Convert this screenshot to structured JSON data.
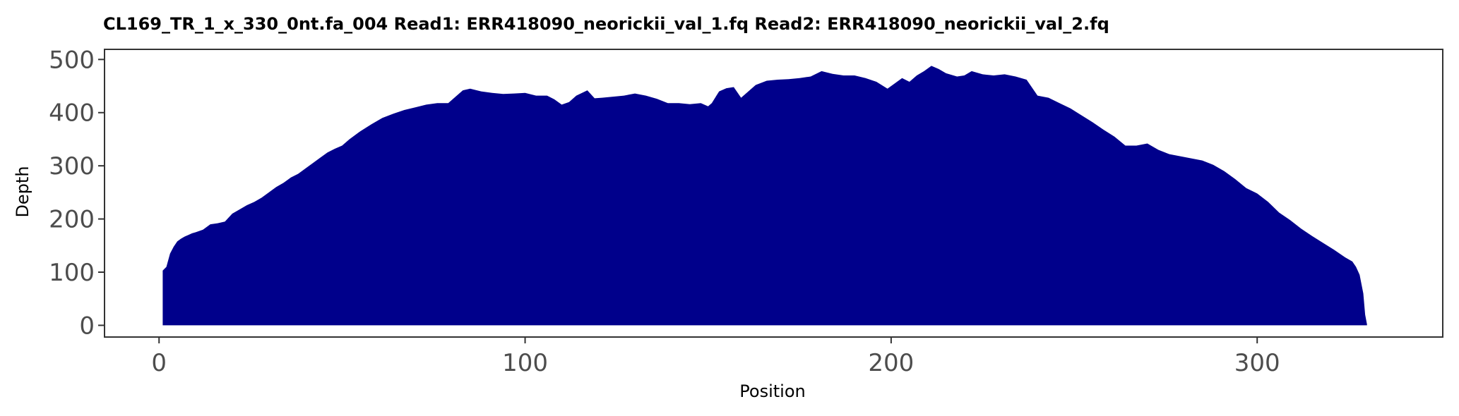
{
  "chart_data": {
    "type": "area",
    "title": "CL169_TR_1_x_330_0nt.fa_004   Read1: ERR418090_neorickii_val_1.fq   Read2: ERR418090_neorickii_val_2.fq",
    "xlabel": "Position",
    "ylabel": "Depth",
    "xlim": [
      -14.9,
      350.7
    ],
    "ylim": [
      -22,
      519
    ],
    "xticks": [
      0,
      100,
      200,
      300
    ],
    "yticks": [
      0,
      100,
      200,
      300,
      400,
      500
    ],
    "grid": false,
    "fill_color": "#00008b",
    "series": [
      {
        "x": [
          1,
          2,
          3,
          4,
          5,
          6,
          7,
          8,
          9,
          10,
          12,
          14,
          16,
          18,
          20,
          22,
          24,
          26,
          28,
          30,
          32,
          34,
          36,
          38,
          40,
          42,
          44,
          46,
          48,
          50,
          52,
          55,
          58,
          61,
          64,
          67,
          70,
          73,
          76,
          79,
          81,
          83,
          85,
          88,
          91,
          94,
          97,
          100,
          103,
          106,
          108,
          110,
          112,
          114,
          117,
          119,
          121,
          124,
          127,
          130,
          133,
          136,
          139,
          142,
          145,
          148,
          150,
          151,
          153,
          155,
          157,
          159,
          161,
          163,
          166,
          169,
          172,
          175,
          178,
          181,
          184,
          187,
          190,
          193,
          196,
          199,
          201,
          203,
          205,
          207,
          209,
          211,
          213,
          215,
          218,
          220,
          222,
          225,
          228,
          231,
          234,
          237,
          240,
          243,
          246,
          249,
          252,
          255,
          258,
          261,
          264,
          267,
          270,
          273,
          276,
          279,
          282,
          285,
          288,
          291,
          294,
          297,
          300,
          303,
          306,
          309,
          312,
          315,
          318,
          321,
          324,
          326,
          327,
          328,
          329,
          329.5,
          330
        ],
        "y": [
          103,
          110,
          135,
          148,
          158,
          163,
          167,
          170,
          173,
          175,
          180,
          190,
          192,
          195,
          210,
          218,
          226,
          232,
          240,
          250,
          260,
          268,
          278,
          285,
          295,
          305,
          315,
          325,
          332,
          338,
          350,
          365,
          378,
          390,
          398,
          405,
          410,
          415,
          418,
          418,
          430,
          442,
          445,
          440,
          437,
          435,
          436,
          437,
          432,
          432,
          425,
          415,
          420,
          432,
          442,
          427,
          428,
          430,
          432,
          436,
          432,
          426,
          418,
          418,
          416,
          418,
          412,
          418,
          440,
          446,
          448,
          428,
          440,
          452,
          460,
          462,
          463,
          465,
          468,
          478,
          473,
          470,
          470,
          465,
          458,
          445,
          455,
          465,
          458,
          470,
          478,
          488,
          482,
          474,
          468,
          470,
          478,
          472,
          470,
          472,
          468,
          462,
          432,
          428,
          418,
          408,
          395,
          382,
          368,
          355,
          338,
          338,
          342,
          330,
          322,
          318,
          314,
          310,
          302,
          290,
          275,
          258,
          248,
          232,
          212,
          198,
          182,
          168,
          155,
          142,
          128,
          120,
          110,
          95,
          60,
          20,
          2
        ]
      }
    ]
  }
}
